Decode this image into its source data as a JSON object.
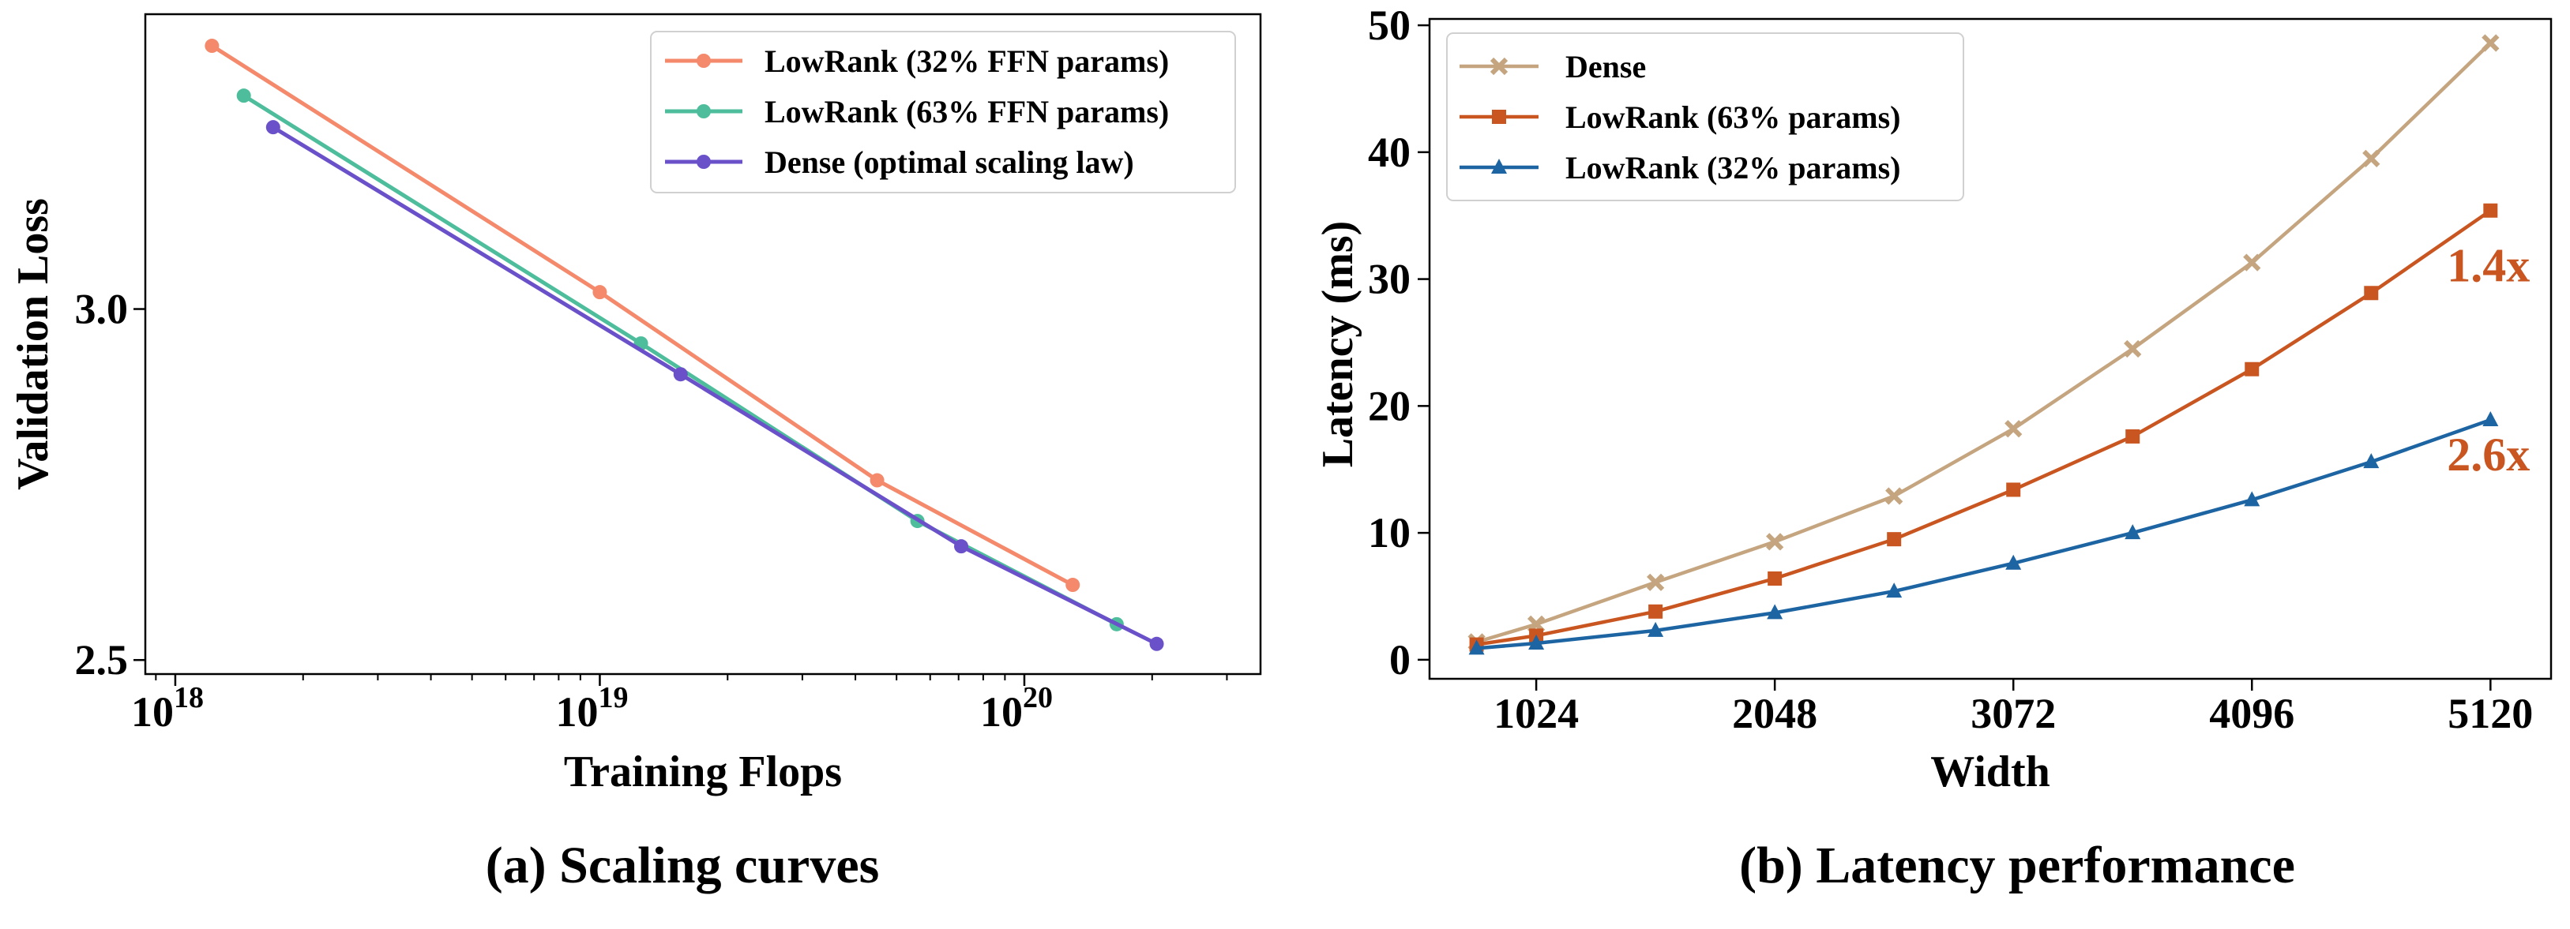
{
  "chart_data": [
    {
      "type": "line",
      "caption": "(a) Scaling curves",
      "xlabel": "Training Flops",
      "ylabel": "Validation Loss",
      "xscale": "log",
      "xlim": [
        8.5e+17,
        3.6e+20
      ],
      "ylim": [
        2.48,
        3.42
      ],
      "xticks": [
        {
          "value": 1e+18,
          "base": "10",
          "exp": "18"
        },
        {
          "value": 1e+19,
          "base": "10",
          "exp": "19"
        },
        {
          "value": 1e+20,
          "base": "10",
          "exp": "20"
        }
      ],
      "yticks": [
        {
          "value": 2.5,
          "label": "2.5"
        },
        {
          "value": 3.0,
          "label": "3.0"
        }
      ],
      "legend_position": "top-right",
      "series": [
        {
          "name": "LowRank (32% FFN params)",
          "color": "#f4896b",
          "x": [
            1.22e+18,
            1e+19,
            4.5e+19,
            1.3e+20
          ],
          "y": [
            3.375,
            3.024,
            2.756,
            2.607
          ]
        },
        {
          "name": "LowRank (63% FFN params)",
          "color": "#4dbd9c",
          "x": [
            1.45e+18,
            1.25e+19,
            5.6e+19,
            1.65e+20
          ],
          "y": [
            3.304,
            2.951,
            2.698,
            2.551
          ]
        },
        {
          "name": "Dense (optimal scaling law)",
          "color": "#6a51c9",
          "x": [
            1.7e+18,
            1.55e+19,
            7.1e+19,
            2.05e+20
          ],
          "y": [
            3.259,
            2.907,
            2.662,
            2.523
          ]
        }
      ]
    },
    {
      "type": "line",
      "caption": "(b) Latency performance",
      "xlabel": "Width",
      "ylabel": "Latency (ms)",
      "xlim": [
        566,
        5380
      ],
      "ylim": [
        -1.5,
        50.5
      ],
      "xticks": [
        1024,
        2048,
        3072,
        4096,
        5120
      ],
      "yticks": [
        0,
        10,
        20,
        30,
        40,
        50
      ],
      "legend_position": "top-left",
      "x": [
        768,
        1024,
        1536,
        2048,
        2560,
        3072,
        3584,
        4096,
        4608,
        5120
      ],
      "series": [
        {
          "name": "Dense",
          "color": "#c4a57f",
          "marker": "x",
          "values": [
            1.4,
            2.8,
            6.1,
            9.3,
            12.9,
            18.2,
            24.5,
            31.3,
            39.5,
            48.6
          ]
        },
        {
          "name": "LowRank (63% params)",
          "color": "#c95620",
          "marker": "square",
          "values": [
            1.2,
            1.9,
            3.8,
            6.4,
            9.5,
            13.4,
            17.6,
            22.9,
            28.9,
            35.4
          ]
        },
        {
          "name": "LowRank (32% params)",
          "color": "#1d64a3",
          "marker": "triangle",
          "values": [
            0.9,
            1.3,
            2.3,
            3.7,
            5.4,
            7.6,
            10.0,
            12.6,
            15.6,
            18.9
          ]
        }
      ],
      "annotations": [
        {
          "text": "1.4x",
          "x": 5120,
          "y": 31.2,
          "color": "#c95620"
        },
        {
          "text": "2.6x",
          "x": 5120,
          "y": 16.3,
          "color": "#c95620"
        }
      ]
    }
  ]
}
